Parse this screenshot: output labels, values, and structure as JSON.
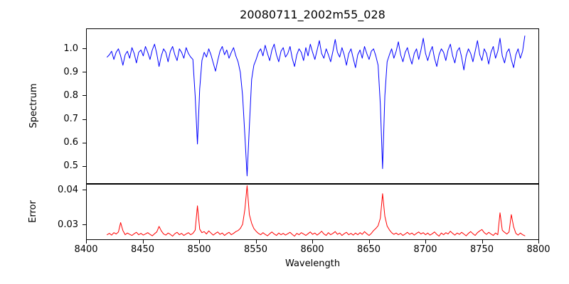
{
  "title": "20080711_2002m55_028",
  "xlabel": "Wavelength",
  "colors": {
    "spectrum_line": "#0000ff",
    "error_line": "#ff0000",
    "frame": "#000000",
    "background": "#ffffff"
  },
  "chart_data": [
    {
      "type": "line",
      "name": "spectrum",
      "ylabel": "Spectrum",
      "color": "#0000ff",
      "x_start": 8418,
      "x_step": 2,
      "xlim": [
        8400,
        8800
      ],
      "ylim": [
        0.428,
        1.084
      ],
      "grid": false,
      "legend": null,
      "yticks": [
        {
          "v": 1.0,
          "label": "1.0"
        },
        {
          "v": 0.9,
          "label": "0.9"
        },
        {
          "v": 0.8,
          "label": "0.8"
        },
        {
          "v": 0.7,
          "label": "0.7"
        },
        {
          "v": 0.6,
          "label": "0.6"
        },
        {
          "v": 0.5,
          "label": "0.5"
        }
      ],
      "absorption_line_centers": [
        8498,
        8542,
        8662
      ],
      "absorption_line_depths": [
        0.595,
        0.459,
        0.49
      ],
      "values": [
        0.965,
        0.975,
        0.99,
        0.955,
        0.985,
        1.0,
        0.97,
        0.93,
        0.975,
        0.99,
        0.96,
        1.005,
        0.98,
        0.94,
        0.985,
        0.995,
        0.97,
        1.01,
        0.985,
        0.955,
        0.995,
        1.02,
        0.98,
        0.925,
        0.97,
        1.0,
        0.985,
        0.945,
        0.99,
        1.01,
        0.975,
        0.95,
        1.0,
        0.985,
        0.96,
        1.005,
        0.98,
        0.965,
        0.955,
        0.8,
        0.595,
        0.83,
        0.95,
        0.985,
        0.965,
        1.0,
        0.975,
        0.94,
        0.905,
        0.95,
        0.99,
        1.01,
        0.975,
        0.995,
        0.96,
        0.985,
        1.005,
        0.97,
        0.945,
        0.9,
        0.8,
        0.63,
        0.459,
        0.67,
        0.87,
        0.93,
        0.955,
        0.985,
        1.0,
        0.97,
        1.015,
        0.98,
        0.95,
        0.995,
        1.02,
        0.975,
        0.945,
        0.99,
        1.005,
        0.965,
        0.98,
        1.01,
        0.96,
        0.925,
        0.975,
        1.0,
        0.985,
        0.95,
        1.005,
        0.97,
        1.02,
        0.985,
        0.955,
        0.995,
        1.035,
        0.98,
        0.96,
        1.0,
        0.975,
        0.945,
        0.99,
        1.04,
        0.985,
        0.965,
        1.005,
        0.975,
        0.93,
        0.98,
        1.0,
        0.96,
        0.92,
        0.975,
        0.995,
        0.96,
        1.01,
        0.98,
        0.955,
        0.99,
        1.0,
        0.97,
        0.93,
        0.76,
        0.49,
        0.8,
        0.945,
        0.975,
        1.0,
        0.96,
        0.99,
        1.03,
        0.975,
        0.945,
        0.985,
        1.005,
        0.965,
        0.935,
        0.98,
        1.0,
        0.955,
        0.995,
        1.045,
        0.98,
        0.95,
        0.985,
        1.01,
        0.96,
        0.925,
        0.975,
        1.0,
        0.985,
        0.95,
        0.995,
        1.02,
        0.97,
        0.94,
        0.99,
        1.005,
        0.965,
        0.91,
        0.97,
        1.0,
        0.98,
        0.945,
        0.99,
        1.035,
        0.975,
        0.95,
        1.0,
        0.98,
        0.935,
        0.985,
        1.01,
        0.96,
        0.99,
        1.045,
        0.97,
        0.94,
        0.985,
        1.0,
        0.955,
        0.92,
        0.975,
        1.0,
        0.96,
        0.99,
        1.055
      ]
    },
    {
      "type": "line",
      "name": "error",
      "ylabel": "Error",
      "xlabel": "Wavelength",
      "color": "#ff0000",
      "x_start": 8418,
      "x_step": 2,
      "xlim": [
        8400,
        8800
      ],
      "ylim": [
        0.0259,
        0.0416
      ],
      "grid": false,
      "legend": null,
      "yticks": [
        {
          "v": 0.04,
          "label": "0.04"
        },
        {
          "v": 0.03,
          "label": "0.03"
        }
      ],
      "xticks": [
        {
          "v": 8400,
          "label": "8400"
        },
        {
          "v": 8450,
          "label": "8450"
        },
        {
          "v": 8500,
          "label": "8500"
        },
        {
          "v": 8550,
          "label": "8550"
        },
        {
          "v": 8600,
          "label": "8600"
        },
        {
          "v": 8650,
          "label": "8650"
        },
        {
          "v": 8700,
          "label": "8700"
        },
        {
          "v": 8750,
          "label": "8750"
        },
        {
          "v": 8800,
          "label": "8800"
        }
      ],
      "peak_centers": [
        8430,
        8498,
        8542,
        8662
      ],
      "peak_heights": [
        0.0307,
        0.0355,
        0.0413,
        0.039
      ],
      "values": [
        0.0272,
        0.0276,
        0.0271,
        0.0278,
        0.0274,
        0.028,
        0.0307,
        0.0284,
        0.0272,
        0.0277,
        0.0273,
        0.027,
        0.0275,
        0.0279,
        0.0272,
        0.0276,
        0.0271,
        0.0274,
        0.0278,
        0.0273,
        0.0269,
        0.0275,
        0.028,
        0.0296,
        0.0283,
        0.0274,
        0.0271,
        0.0277,
        0.0273,
        0.0268,
        0.0275,
        0.0279,
        0.0272,
        0.0276,
        0.027,
        0.0274,
        0.0278,
        0.0272,
        0.0276,
        0.0285,
        0.0355,
        0.0288,
        0.0278,
        0.0281,
        0.0274,
        0.0283,
        0.0277,
        0.0271,
        0.0276,
        0.028,
        0.0273,
        0.0277,
        0.027,
        0.0275,
        0.0279,
        0.0272,
        0.0276,
        0.0281,
        0.0284,
        0.029,
        0.0302,
        0.0345,
        0.0413,
        0.033,
        0.0305,
        0.029,
        0.0282,
        0.0276,
        0.0272,
        0.0278,
        0.0273,
        0.0269,
        0.0275,
        0.028,
        0.0274,
        0.027,
        0.0277,
        0.0272,
        0.0276,
        0.0271,
        0.0275,
        0.0279,
        0.0273,
        0.0268,
        0.0276,
        0.0272,
        0.0278,
        0.0274,
        0.027,
        0.0275,
        0.028,
        0.0273,
        0.0277,
        0.0271,
        0.0276,
        0.0282,
        0.0274,
        0.027,
        0.0278,
        0.0272,
        0.0276,
        0.0281,
        0.0273,
        0.0277,
        0.027,
        0.0275,
        0.0279,
        0.0272,
        0.0276,
        0.0271,
        0.0277,
        0.0272,
        0.0278,
        0.0273,
        0.0281,
        0.0275,
        0.027,
        0.0276,
        0.0284,
        0.029,
        0.0298,
        0.032,
        0.039,
        0.0325,
        0.0297,
        0.0286,
        0.0278,
        0.0273,
        0.0277,
        0.0272,
        0.0276,
        0.027,
        0.0274,
        0.0279,
        0.0273,
        0.0277,
        0.0271,
        0.0276,
        0.028,
        0.0274,
        0.0278,
        0.0272,
        0.0277,
        0.0271,
        0.0275,
        0.028,
        0.0273,
        0.0268,
        0.0277,
        0.0272,
        0.0278,
        0.0274,
        0.0282,
        0.0276,
        0.0271,
        0.0277,
        0.0273,
        0.0279,
        0.0274,
        0.0269,
        0.0276,
        0.0281,
        0.0275,
        0.027,
        0.0278,
        0.0283,
        0.0287,
        0.0278,
        0.0273,
        0.0279,
        0.0274,
        0.027,
        0.0277,
        0.0272,
        0.0335,
        0.0285,
        0.0279,
        0.0274,
        0.028,
        0.033,
        0.0295,
        0.0276,
        0.0271,
        0.0277,
        0.0272,
        0.0269
      ]
    }
  ]
}
